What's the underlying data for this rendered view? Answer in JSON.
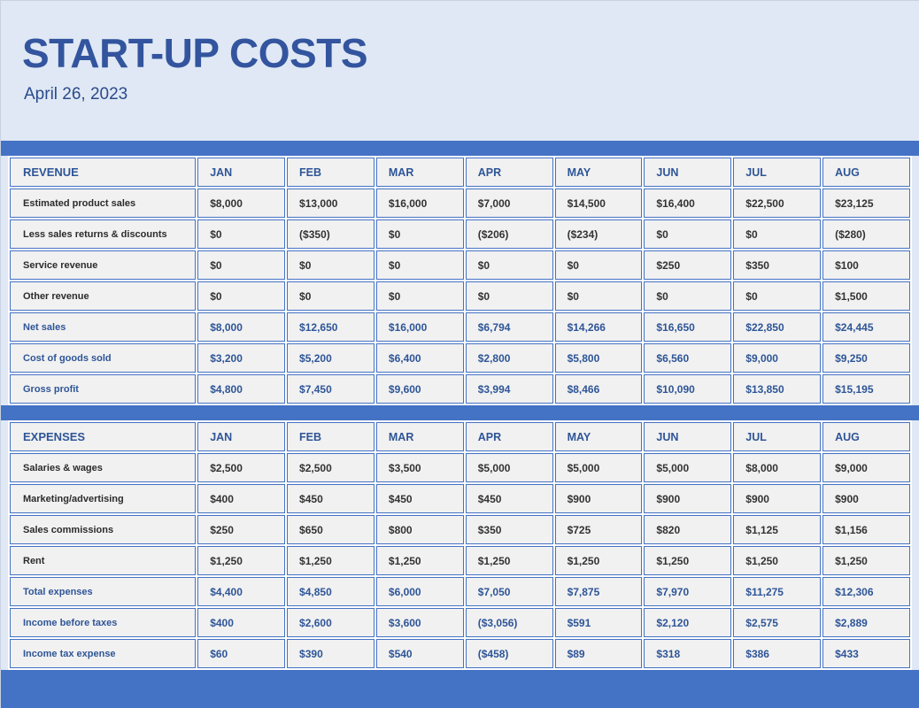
{
  "header": {
    "title": "START-UP COSTS",
    "date": "April 26, 2023"
  },
  "months": [
    "JAN",
    "FEB",
    "MAR",
    "APR",
    "MAY",
    "JUN",
    "JUL",
    "AUG"
  ],
  "revenue": {
    "section_label": "REVENUE",
    "rows": [
      {
        "label": "Estimated product sales",
        "values": [
          "$8,000",
          "$13,000",
          "$16,000",
          "$7,000",
          "$14,500",
          "$16,400",
          "$22,500",
          "$23,125"
        ]
      },
      {
        "label": "Less sales returns & discounts",
        "values": [
          "$0",
          "($350)",
          "$0",
          "($206)",
          "($234)",
          "$0",
          "$0",
          "($280)"
        ]
      },
      {
        "label": "Service revenue",
        "values": [
          "$0",
          "$0",
          "$0",
          "$0",
          "$0",
          "$250",
          "$350",
          "$100"
        ]
      },
      {
        "label": "Other revenue",
        "values": [
          "$0",
          "$0",
          "$0",
          "$0",
          "$0",
          "$0",
          "$0",
          "$1,500"
        ]
      },
      {
        "label": "Net sales",
        "emphasis": true,
        "values": [
          "$8,000",
          "$12,650",
          "$16,000",
          "$6,794",
          "$14,266",
          "$16,650",
          "$22,850",
          "$24,445"
        ]
      },
      {
        "label": "Cost of goods sold",
        "emphasis": true,
        "values": [
          "$3,200",
          "$5,200",
          "$6,400",
          "$2,800",
          "$5,800",
          "$6,560",
          "$9,000",
          "$9,250"
        ]
      },
      {
        "label": "Gross profit",
        "emphasis": true,
        "values": [
          "$4,800",
          "$7,450",
          "$9,600",
          "$3,994",
          "$8,466",
          "$10,090",
          "$13,850",
          "$15,195"
        ]
      }
    ]
  },
  "expenses": {
    "section_label": "EXPENSES",
    "rows": [
      {
        "label": "Salaries & wages",
        "values": [
          "$2,500",
          "$2,500",
          "$3,500",
          "$5,000",
          "$5,000",
          "$5,000",
          "$8,000",
          "$9,000"
        ]
      },
      {
        "label": "Marketing/advertising",
        "values": [
          "$400",
          "$450",
          "$450",
          "$450",
          "$900",
          "$900",
          "$900",
          "$900"
        ]
      },
      {
        "label": "Sales commissions",
        "values": [
          "$250",
          "$650",
          "$800",
          "$350",
          "$725",
          "$820",
          "$1,125",
          "$1,156"
        ]
      },
      {
        "label": "Rent",
        "values": [
          "$1,250",
          "$1,250",
          "$1,250",
          "$1,250",
          "$1,250",
          "$1,250",
          "$1,250",
          "$1,250"
        ]
      },
      {
        "label": "Total expenses",
        "emphasis": true,
        "values": [
          "$4,400",
          "$4,850",
          "$6,000",
          "$7,050",
          "$7,875",
          "$7,970",
          "$11,275",
          "$12,306"
        ]
      },
      {
        "label": "Income before taxes",
        "emphasis": true,
        "values": [
          "$400",
          "$2,600",
          "$3,600",
          "($3,056)",
          "$591",
          "$2,120",
          "$2,575",
          "$2,889"
        ]
      },
      {
        "label": "Income tax expense",
        "emphasis": true,
        "values": [
          "$60",
          "$390",
          "$540",
          "($458)",
          "$89",
          "$318",
          "$386",
          "$433"
        ]
      }
    ]
  },
  "colors": {
    "page_background": "#dfe8f4",
    "band_blue": "#4472c4",
    "cell_background": "#f1f1f1",
    "cell_border_blue": "#4472c4",
    "emphasis_text_blue": "#2e5597",
    "title_blue": "#33549e",
    "body_text": "#2b2b2b"
  }
}
